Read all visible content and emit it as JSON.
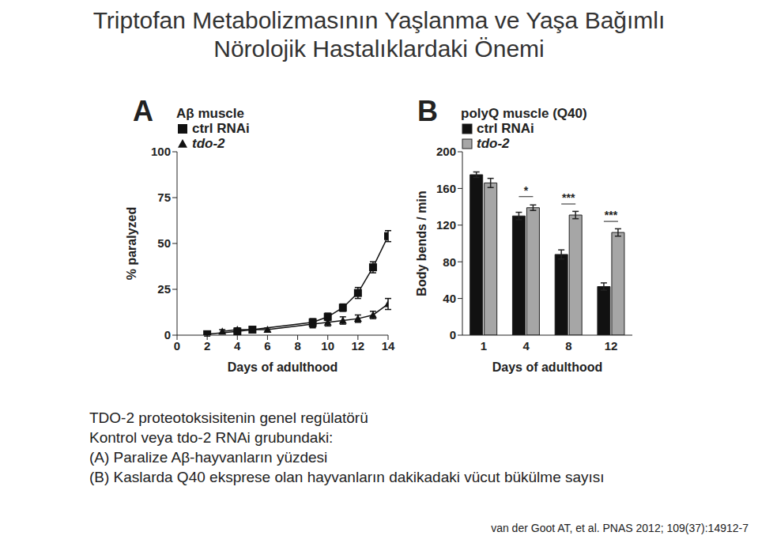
{
  "title": [
    "Triptofan Metabolizmasının Yaşlanma ve Yaşa Bağımlı",
    "Nörolojik Hastalıklardaki Önemi"
  ],
  "chart_data": [
    {
      "type": "line",
      "panel": "A",
      "title": "Aβ muscle",
      "x_label": "Days of adulthood",
      "y_label": "% paralyzed",
      "xlim": [
        0,
        14
      ],
      "xticks": [
        0,
        2,
        4,
        6,
        8,
        10,
        12,
        14
      ],
      "ylim": [
        0,
        100
      ],
      "yticks": [
        0,
        25,
        50,
        75,
        100
      ],
      "legend": "upper left",
      "series": [
        {
          "name": "ctrl RNAi",
          "color": "#111111",
          "marker": "square",
          "x": [
            2,
            4,
            5,
            9,
            10,
            11,
            12,
            13,
            14
          ],
          "values": [
            0.5,
            2,
            3,
            7,
            10,
            15,
            23,
            37,
            54
          ],
          "error": [
            1,
            1,
            1,
            2,
            2,
            2,
            3,
            3,
            3
          ]
        },
        {
          "name": "tdo-2",
          "color": "#111111",
          "marker": "triangle",
          "x": [
            3,
            4,
            6,
            9,
            10,
            11,
            12,
            13,
            14
          ],
          "values": [
            2,
            3,
            3,
            6,
            7,
            8,
            9,
            11,
            17
          ],
          "error": [
            1,
            1,
            1,
            2,
            2,
            2,
            2,
            2,
            3
          ]
        }
      ]
    },
    {
      "type": "bar",
      "panel": "B",
      "title": "polyQ muscle (Q40)",
      "x_label": "Days of adulthood",
      "y_label": "Body bends / min",
      "categories": [
        "1",
        "4",
        "8",
        "12"
      ],
      "ylim": [
        0,
        200
      ],
      "yticks": [
        0,
        40,
        80,
        120,
        160,
        200
      ],
      "legend": "upper left",
      "series": [
        {
          "name": "ctrl RNAi",
          "color": "#111111",
          "values": [
            175,
            130,
            88,
            53
          ],
          "error": [
            3,
            4,
            5,
            4
          ]
        },
        {
          "name": "tdo-2",
          "color": "#a6a6a6",
          "values": [
            166,
            139,
            131,
            112
          ],
          "error": [
            5,
            3,
            4,
            4
          ]
        }
      ],
      "annotations": [
        {
          "category": "4",
          "label": "*"
        },
        {
          "category": "8",
          "label": "***"
        },
        {
          "category": "12",
          "label": "***"
        }
      ]
    }
  ],
  "caption": [
    "TDO-2 proteotoksisitenin genel regülatörü",
    "Kontrol veya tdo-2 RNAi grubundaki:",
    "(A) Paralize Aβ-hayvanların yüzdesi",
    "(B) Kaslarda Q40 eksprese olan hayvanların dakikadaki vücut bükülme sayısı"
  ],
  "citation": "van der Goot AT, et al. PNAS 2012; 109(37):14912-7"
}
